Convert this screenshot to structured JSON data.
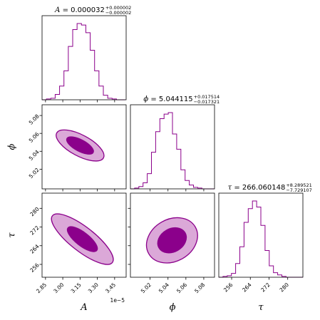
{
  "chart_data": {
    "type": "corner",
    "parameters": [
      {
        "id": "A",
        "label": "A",
        "range": [
          2.82e-05,
          3.55e-05
        ],
        "ticks": [
          2.85e-05,
          3e-05,
          3.15e-05,
          3.3e-05,
          3.45e-05
        ],
        "tick_labels": [
          "2.85",
          "3.00",
          "3.15",
          "3.30",
          "3.45"
        ],
        "offset_text": "1e−5",
        "title": {
          "prefix": "A = ",
          "value": "0.000032",
          "plus": "+0.000002",
          "minus": "−0.000002"
        },
        "histogram": {
          "start": 2.82e-05,
          "bin_width": 3.8e-07,
          "counts": [
            0,
            1,
            2,
            7,
            18,
            38,
            70,
            92,
            100,
            98,
            88,
            65,
            38,
            18,
            6,
            2,
            1,
            0,
            0
          ]
        }
      },
      {
        "id": "phi",
        "label": "ϕ",
        "range": [
          4.998,
          5.092
        ],
        "ticks": [
          5.02,
          5.04,
          5.06,
          5.08
        ],
        "tick_labels": [
          "5.02",
          "5.04",
          "5.06",
          "5.08"
        ],
        "title": {
          "prefix": "ϕ = ",
          "value": "5.044115",
          "plus": "+0.017514",
          "minus": "−0.017321"
        },
        "histogram": {
          "start": 4.998,
          "bin_width": 0.0047,
          "counts": [
            0,
            1,
            3,
            8,
            20,
            48,
            75,
            92,
            98,
            100,
            72,
            52,
            25,
            11,
            5,
            2,
            1,
            0,
            0,
            0
          ]
        }
      },
      {
        "id": "tau",
        "label": "τ",
        "range": [
          250.5,
          286.5
        ],
        "ticks": [
          256,
          264,
          272,
          280
        ],
        "tick_labels": [
          "256",
          "264",
          "272",
          "280"
        ],
        "title": {
          "prefix": "τ = ",
          "value": "266.060148",
          "plus": "+8.289521",
          "minus": "−7.729107"
        },
        "histogram": {
          "start": 250.5,
          "bin_width": 1.8,
          "counts": [
            0,
            1,
            2,
            5,
            18,
            40,
            72,
            90,
            100,
            92,
            68,
            35,
            15,
            6,
            3,
            1,
            0,
            0,
            0,
            0
          ]
        }
      }
    ],
    "contours": [
      {
        "x": "A",
        "y": "phi",
        "levels": [
          {
            "cx": 3.15e-05,
            "cy": 5.0465,
            "rx": 2.3e-06,
            "ry": 0.0118,
            "rotation_deg": 28
          },
          {
            "cx": 3.15e-05,
            "cy": 5.0465,
            "rx": 1.3e-06,
            "ry": 0.0066,
            "rotation_deg": 28
          }
        ]
      },
      {
        "x": "A",
        "y": "tau",
        "levels": [
          {
            "cx": 3.17e-05,
            "cy": 266.8,
            "rx": 3.3e-06,
            "ry": 5.2,
            "rotation_deg": 38
          },
          {
            "cx": 3.17e-05,
            "cy": 266.8,
            "rx": 1.6e-06,
            "ry": 2.9,
            "rotation_deg": 38
          }
        ]
      },
      {
        "x": "phi",
        "y": "tau",
        "levels": [
          {
            "cx": 5.0445,
            "cy": 266.3,
            "rx": 0.03,
            "ry": 9.0,
            "rotation_deg": -30
          },
          {
            "cx": 5.0445,
            "cy": 266.3,
            "rx": 0.017,
            "ry": 5.0,
            "rotation_deg": -30
          }
        ]
      }
    ],
    "grid": false,
    "legend": "none",
    "colors": {
      "hist": "#8b008b",
      "outer": "#dba8d8",
      "inner": "#8b008b"
    }
  }
}
